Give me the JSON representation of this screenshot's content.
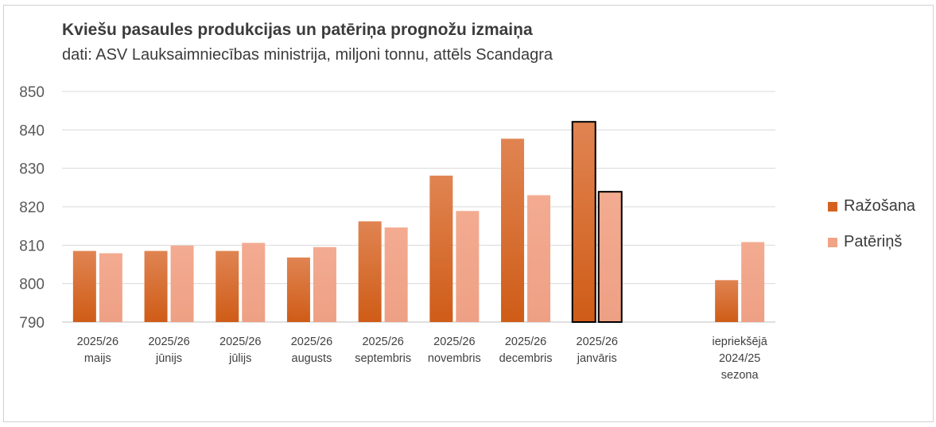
{
  "chart_data": {
    "type": "bar",
    "title": "Kviešu pasaules produkcijas un patēriņa prognožu izmaiņa",
    "subtitle": "dati: ASV Lauksaimniecības ministrija, miljoni tonnu, attēls Scandagra",
    "xlabel": "",
    "ylabel": "",
    "ylim": [
      790,
      850
    ],
    "yticks": [
      790,
      800,
      810,
      820,
      830,
      840,
      850
    ],
    "grid": true,
    "legend_position": "right",
    "categories": [
      [
        "2025/26",
        "maijs"
      ],
      [
        "2025/26",
        "jūnijs"
      ],
      [
        "2025/26",
        "jūlijs"
      ],
      [
        "2025/26",
        "augusts"
      ],
      [
        "2025/26",
        "septembris"
      ],
      [
        "2025/26",
        "novembris"
      ],
      [
        "2025/26",
        "decembris"
      ],
      [
        "2025/26",
        "janvāris"
      ],
      [
        "",
        ""
      ],
      [
        "iepriekšējā",
        "2024/25",
        "sezona"
      ]
    ],
    "series": [
      {
        "name": "Ražošana",
        "color": "#d4621f",
        "values": [
          808.5,
          808.5,
          808.5,
          806.8,
          816.2,
          828.1,
          837.7,
          842.1,
          null,
          800.9
        ]
      },
      {
        "name": "Patēriņš",
        "color": "#f0a385",
        "values": [
          807.9,
          809.9,
          810.6,
          809.5,
          814.6,
          818.9,
          823.0,
          823.9,
          null,
          810.8
        ]
      }
    ],
    "highlighted_category_index": 7
  }
}
